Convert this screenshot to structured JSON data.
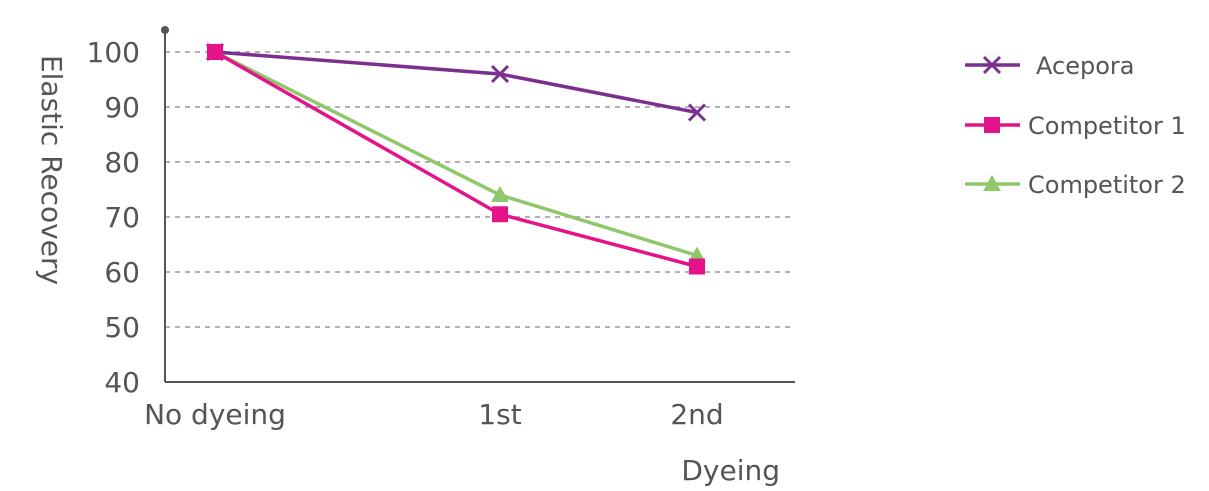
{
  "chart_data": {
    "type": "line",
    "categories": [
      "No dyeing",
      "1st",
      "2nd"
    ],
    "series": [
      {
        "name": "Acepora",
        "values": [
          100,
          96,
          89
        ],
        "color": "#7b2f8f",
        "marker": "x"
      },
      {
        "name": "Competitor 1",
        "values": [
          100,
          70.5,
          61
        ],
        "color": "#e5138a",
        "marker": "square"
      },
      {
        "name": "Competitor 2",
        "values": [
          100,
          74,
          63
        ],
        "color": "#8fc86a",
        "marker": "triangle"
      }
    ],
    "xlabel": "Dyeing",
    "ylabel": "Elastic Recovery",
    "ylim": [
      40,
      100
    ],
    "yticks": [
      40,
      50,
      60,
      70,
      80,
      90,
      100
    ],
    "grid": true,
    "legend_position": "top-right",
    "colors": {
      "axis": "#555555",
      "grid": "#999999",
      "text": "#555555"
    }
  }
}
